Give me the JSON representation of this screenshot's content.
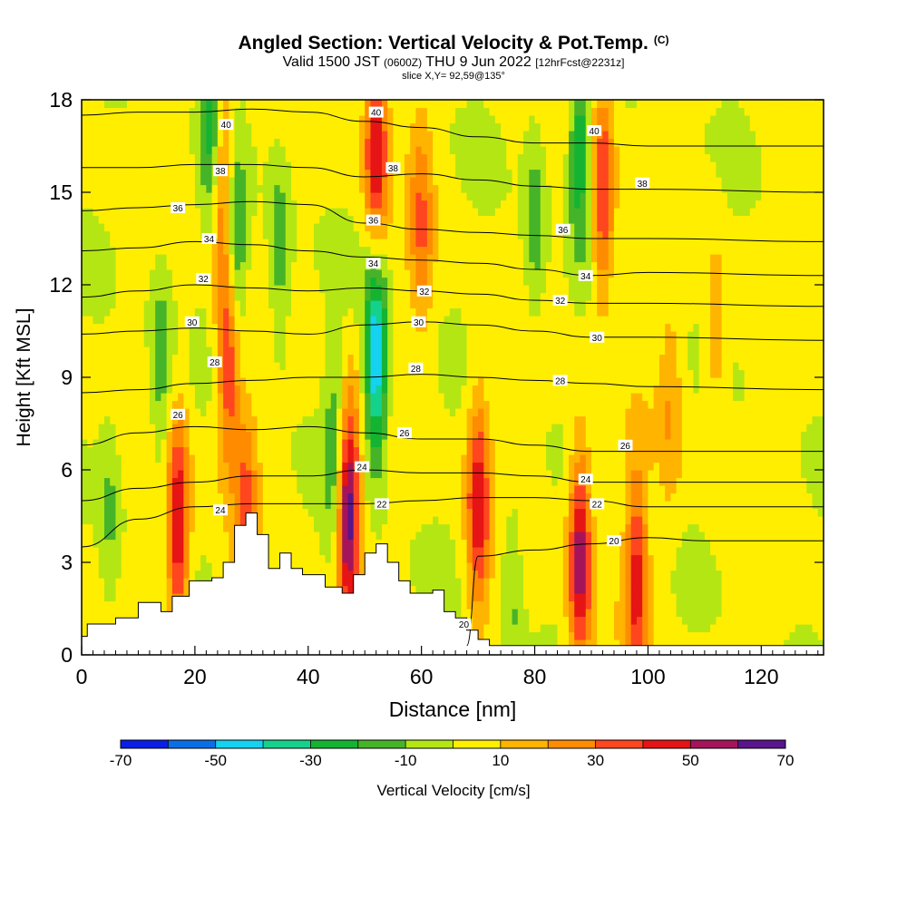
{
  "header": {
    "title": "Angled Section: Vertical Velocity & Pot.Temp.",
    "copyright": "(C)",
    "valid_main": "Valid 1500 JST",
    "valid_z": "(0600Z)",
    "valid_date": "THU 9 Jun 2022",
    "fcst": "[12hrFcst@2231z]",
    "slice": "slice X,Y= 92,59@135°"
  },
  "chart_data": {
    "type": "heatmap",
    "xlabel": "Distance [nm]",
    "ylabel": "Height [Kft MSL]",
    "xlim": [
      0,
      131
    ],
    "ylim": [
      0,
      18
    ],
    "x_ticks": [
      0,
      20,
      40,
      60,
      80,
      100,
      120
    ],
    "y_ticks": [
      0,
      3,
      6,
      9,
      12,
      15,
      18
    ],
    "colorbar": {
      "label": "Vertical Velocity [cm/s]",
      "ticks": [
        -70,
        -50,
        -30,
        -10,
        10,
        30,
        50,
        70
      ],
      "levels": [
        -70,
        -60,
        -50,
        -40,
        -30,
        -20,
        -10,
        0,
        10,
        20,
        30,
        40,
        50,
        60,
        70
      ],
      "colors": [
        "#0a1ee6",
        "#0a6ee6",
        "#14d2f0",
        "#14d28c",
        "#14b432",
        "#46b428",
        "#b4e614",
        "#ffee00",
        "#ffb400",
        "#ff8c00",
        "#ff461e",
        "#e61414",
        "#a5145a",
        "#5a148c"
      ]
    },
    "terrain_profile": [
      [
        0,
        0.6
      ],
      [
        1,
        1
      ],
      [
        6,
        1.2
      ],
      [
        10,
        1.7
      ],
      [
        14,
        1.4
      ],
      [
        16,
        1.9
      ],
      [
        19,
        2.4
      ],
      [
        23,
        2.5
      ],
      [
        25,
        3
      ],
      [
        27,
        4.2
      ],
      [
        29,
        4.6
      ],
      [
        31,
        3.9
      ],
      [
        33,
        2.8
      ],
      [
        35,
        3.3
      ],
      [
        37,
        2.8
      ],
      [
        39,
        2.6
      ],
      [
        41,
        2.6
      ],
      [
        43,
        2.2
      ],
      [
        46,
        2
      ],
      [
        48,
        2.6
      ],
      [
        50,
        3.3
      ],
      [
        52,
        3.6
      ],
      [
        54,
        3
      ],
      [
        56,
        2.4
      ],
      [
        58,
        2
      ],
      [
        60,
        2
      ],
      [
        62,
        2.1
      ],
      [
        64,
        1.4
      ],
      [
        66,
        1.2
      ],
      [
        68,
        0.8
      ],
      [
        70,
        0.5
      ],
      [
        72,
        0.3
      ],
      [
        131,
        0.3
      ]
    ],
    "vertical_velocity_features": [
      {
        "x": 17,
        "z": 4.2,
        "value": 50
      },
      {
        "x": 26,
        "z": 9.8,
        "value": 45
      },
      {
        "x": 29,
        "z": 4.5,
        "value": 30
      },
      {
        "x": 47,
        "z": 4.8,
        "value": 70
      },
      {
        "x": 52,
        "z": 9.6,
        "value": -55
      },
      {
        "x": 52,
        "z": 16.5,
        "value": 50
      },
      {
        "x": 70,
        "z": 4.9,
        "value": 45
      },
      {
        "x": 88,
        "z": 3.2,
        "value": 55
      },
      {
        "x": 98,
        "z": 2.5,
        "value": 40
      },
      {
        "x": 92,
        "z": 15,
        "value": 40
      },
      {
        "x": 25,
        "z": 15.5,
        "value": 35
      },
      {
        "x": 60,
        "z": 14,
        "value": 25
      },
      {
        "x": 23,
        "z": 17.4,
        "value": -30
      },
      {
        "x": 27,
        "z": 13,
        "value": -35
      },
      {
        "x": 35,
        "z": 13,
        "value": -20
      },
      {
        "x": 80,
        "z": 14,
        "value": -20
      },
      {
        "x": 88,
        "z": 16.5,
        "value": -30
      },
      {
        "x": 14,
        "z": 9.5,
        "value": -20
      },
      {
        "x": 45,
        "z": 6.5,
        "value": -25
      },
      {
        "x": 104,
        "z": 8,
        "value": 15
      },
      {
        "x": 112,
        "z": 10,
        "value": 15
      },
      {
        "x": 76,
        "z": 2.2,
        "value": -15
      },
      {
        "x": 5,
        "z": 4.5,
        "value": -15
      }
    ],
    "isentropes": [
      {
        "level": 20,
        "points": [
          [
            68,
            0.3
          ],
          [
            70,
            3.2
          ],
          [
            80,
            3.4
          ],
          [
            90,
            3.6
          ],
          [
            100,
            3.8
          ],
          [
            110,
            3.7
          ],
          [
            131,
            3.7
          ]
        ]
      },
      {
        "level": 22,
        "points": [
          [
            0,
            3.5
          ],
          [
            10,
            4.4
          ],
          [
            20,
            4.8
          ],
          [
            30,
            4.9
          ],
          [
            40,
            4.9
          ],
          [
            50,
            4.9
          ],
          [
            60,
            5
          ],
          [
            70,
            5.1
          ],
          [
            80,
            5.1
          ],
          [
            90,
            5
          ],
          [
            100,
            4.8
          ],
          [
            110,
            4.8
          ],
          [
            131,
            4.8
          ]
        ]
      },
      {
        "level": 24,
        "points": [
          [
            0,
            5
          ],
          [
            10,
            5.4
          ],
          [
            20,
            5.6
          ],
          [
            30,
            5.8
          ],
          [
            40,
            5.8
          ],
          [
            50,
            6
          ],
          [
            60,
            5.9
          ],
          [
            70,
            5.9
          ],
          [
            80,
            5.8
          ],
          [
            90,
            5.6
          ],
          [
            100,
            5.6
          ],
          [
            131,
            5.6
          ]
        ]
      },
      {
        "level": 26,
        "points": [
          [
            0,
            6.8
          ],
          [
            10,
            7.2
          ],
          [
            20,
            7.4
          ],
          [
            30,
            7.3
          ],
          [
            40,
            7.4
          ],
          [
            50,
            7.2
          ],
          [
            60,
            7
          ],
          [
            70,
            7
          ],
          [
            80,
            6.8
          ],
          [
            90,
            6.6
          ],
          [
            100,
            6.6
          ],
          [
            131,
            6.6
          ]
        ]
      },
      {
        "level": 28,
        "points": [
          [
            0,
            8.5
          ],
          [
            10,
            8.6
          ],
          [
            20,
            8.8
          ],
          [
            30,
            8.9
          ],
          [
            40,
            9
          ],
          [
            50,
            9
          ],
          [
            60,
            9.1
          ],
          [
            70,
            9
          ],
          [
            80,
            8.9
          ],
          [
            90,
            8.8
          ],
          [
            100,
            8.7
          ],
          [
            131,
            8.6
          ]
        ]
      },
      {
        "level": 30,
        "points": [
          [
            0,
            10.4
          ],
          [
            10,
            10.5
          ],
          [
            20,
            10.6
          ],
          [
            30,
            10.5
          ],
          [
            40,
            10.4
          ],
          [
            50,
            10.7
          ],
          [
            60,
            10.8
          ],
          [
            70,
            10.7
          ],
          [
            80,
            10.5
          ],
          [
            90,
            10.3
          ],
          [
            100,
            10.3
          ],
          [
            131,
            10.2
          ]
        ]
      },
      {
        "level": 32,
        "points": [
          [
            0,
            11.6
          ],
          [
            10,
            11.8
          ],
          [
            20,
            12
          ],
          [
            30,
            11.9
          ],
          [
            40,
            11.8
          ],
          [
            50,
            11.9
          ],
          [
            60,
            11.8
          ],
          [
            70,
            11.7
          ],
          [
            80,
            11.5
          ],
          [
            90,
            11.4
          ],
          [
            100,
            11.4
          ],
          [
            131,
            11.3
          ]
        ]
      },
      {
        "level": 34,
        "points": [
          [
            0,
            13.1
          ],
          [
            10,
            13.2
          ],
          [
            20,
            13.4
          ],
          [
            30,
            13.3
          ],
          [
            40,
            13.1
          ],
          [
            50,
            12.9
          ],
          [
            60,
            12.8
          ],
          [
            70,
            12.7
          ],
          [
            80,
            12.5
          ],
          [
            90,
            12.3
          ],
          [
            100,
            12.4
          ],
          [
            131,
            12.3
          ]
        ]
      },
      {
        "level": 36,
        "points": [
          [
            0,
            14.4
          ],
          [
            10,
            14.5
          ],
          [
            20,
            14.6
          ],
          [
            30,
            14.7
          ],
          [
            40,
            14.6
          ],
          [
            50,
            14
          ],
          [
            60,
            13.8
          ],
          [
            70,
            13.7
          ],
          [
            80,
            13.6
          ],
          [
            90,
            13.5
          ],
          [
            100,
            13.5
          ],
          [
            131,
            13.4
          ]
        ]
      },
      {
        "level": 38,
        "points": [
          [
            0,
            15.8
          ],
          [
            10,
            15.8
          ],
          [
            20,
            15.9
          ],
          [
            30,
            15.9
          ],
          [
            40,
            15.8
          ],
          [
            50,
            15.5
          ],
          [
            60,
            15.6
          ],
          [
            70,
            15.4
          ],
          [
            80,
            15.2
          ],
          [
            90,
            15.1
          ],
          [
            100,
            15.1
          ],
          [
            131,
            15
          ]
        ]
      },
      {
        "level": 40,
        "points": [
          [
            0,
            17.5
          ],
          [
            10,
            17.6
          ],
          [
            20,
            17.6
          ],
          [
            30,
            17.7
          ],
          [
            40,
            17.6
          ],
          [
            50,
            17.3
          ],
          [
            60,
            17.1
          ],
          [
            70,
            16.8
          ],
          [
            80,
            16.6
          ],
          [
            90,
            16.6
          ],
          [
            100,
            16.5
          ],
          [
            131,
            16.5
          ]
        ]
      }
    ],
    "contour_labels": [
      {
        "text": "40",
        "x": 25.5,
        "z": 17.2
      },
      {
        "text": "40",
        "x": 52,
        "z": 17.6
      },
      {
        "text": "40",
        "x": 90.5,
        "z": 17
      },
      {
        "text": "38",
        "x": 24.5,
        "z": 15.7
      },
      {
        "text": "38",
        "x": 55,
        "z": 15.8
      },
      {
        "text": "38",
        "x": 99,
        "z": 15.3
      },
      {
        "text": "36",
        "x": 17,
        "z": 14.5
      },
      {
        "text": "36",
        "x": 51.5,
        "z": 14.1
      },
      {
        "text": "36",
        "x": 85,
        "z": 13.8
      },
      {
        "text": "34",
        "x": 22.5,
        "z": 13.5
      },
      {
        "text": "34",
        "x": 51.5,
        "z": 12.7
      },
      {
        "text": "34",
        "x": 89,
        "z": 12.3
      },
      {
        "text": "32",
        "x": 21.5,
        "z": 12.2
      },
      {
        "text": "32",
        "x": 60.5,
        "z": 11.8
      },
      {
        "text": "32",
        "x": 84.5,
        "z": 11.5
      },
      {
        "text": "30",
        "x": 19.5,
        "z": 10.8
      },
      {
        "text": "30",
        "x": 59.5,
        "z": 10.8
      },
      {
        "text": "30",
        "x": 91,
        "z": 10.3
      },
      {
        "text": "28",
        "x": 23.5,
        "z": 9.5
      },
      {
        "text": "28",
        "x": 59,
        "z": 9.3
      },
      {
        "text": "28",
        "x": 84.5,
        "z": 8.9
      },
      {
        "text": "26",
        "x": 17,
        "z": 7.8
      },
      {
        "text": "26",
        "x": 57,
        "z": 7.2
      },
      {
        "text": "26",
        "x": 96,
        "z": 6.8
      },
      {
        "text": "24",
        "x": 24.5,
        "z": 4.7
      },
      {
        "text": "24",
        "x": 49.5,
        "z": 6.1
      },
      {
        "text": "24",
        "x": 89,
        "z": 5.7
      },
      {
        "text": "22",
        "x": 53,
        "z": 4.9
      },
      {
        "text": "22",
        "x": 91,
        "z": 4.9
      },
      {
        "text": "20",
        "x": 94,
        "z": 3.7
      },
      {
        "text": "20",
        "x": 67.5,
        "z": 1
      }
    ]
  }
}
